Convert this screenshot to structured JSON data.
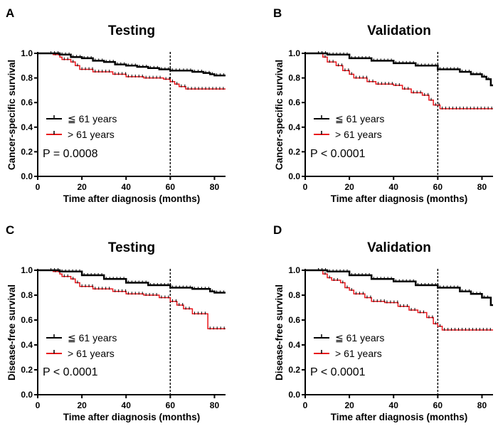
{
  "chart_data": [
    {
      "type": "line",
      "panel": "A",
      "title": "Testing",
      "xlabel": "Time after diagnosis (months)",
      "ylabel": "Cancer-specific survival",
      "xlim": [
        0,
        85
      ],
      "ylim": [
        0,
        1
      ],
      "xticks": [
        0,
        20,
        40,
        60,
        80
      ],
      "yticks": [
        "0.0",
        "0.2",
        "0.4",
        "0.6",
        "0.8",
        "1.0"
      ],
      "reference_line_x": 60,
      "pvalue": "P = 0.0008",
      "series": [
        {
          "name": "≦ 61 years",
          "color": "#000000",
          "points": [
            [
              0,
              1.0
            ],
            [
              5,
              1.0
            ],
            [
              10,
              0.99
            ],
            [
              15,
              0.97
            ],
            [
              20,
              0.96
            ],
            [
              25,
              0.94
            ],
            [
              30,
              0.93
            ],
            [
              35,
              0.91
            ],
            [
              40,
              0.9
            ],
            [
              45,
              0.89
            ],
            [
              50,
              0.88
            ],
            [
              55,
              0.87
            ],
            [
              60,
              0.86
            ],
            [
              65,
              0.86
            ],
            [
              70,
              0.85
            ],
            [
              75,
              0.84
            ],
            [
              78,
              0.83
            ],
            [
              80,
              0.82
            ],
            [
              85,
              0.82
            ]
          ]
        },
        {
          "name": "> 61 years",
          "color": "#e8151b",
          "points": [
            [
              0,
              1.0
            ],
            [
              7,
              0.99
            ],
            [
              10,
              0.97
            ],
            [
              11,
              0.95
            ],
            [
              15,
              0.93
            ],
            [
              17,
              0.9
            ],
            [
              19,
              0.87
            ],
            [
              25,
              0.85
            ],
            [
              34,
              0.83
            ],
            [
              40,
              0.81
            ],
            [
              48,
              0.8
            ],
            [
              57,
              0.79
            ],
            [
              60,
              0.77
            ],
            [
              62,
              0.75
            ],
            [
              64,
              0.73
            ],
            [
              67,
              0.71
            ],
            [
              85,
              0.71
            ]
          ]
        }
      ]
    },
    {
      "type": "line",
      "panel": "B",
      "title": "Validation",
      "xlabel": "Time after diagnosis (months)",
      "ylabel": "Cancer-specific survival",
      "xlim": [
        0,
        85
      ],
      "ylim": [
        0,
        1
      ],
      "xticks": [
        0,
        20,
        40,
        60,
        80
      ],
      "yticks": [
        "0.0",
        "0.2",
        "0.4",
        "0.6",
        "0.8",
        "1.0"
      ],
      "reference_line_x": 60,
      "pvalue": "P < 0.0001",
      "series": [
        {
          "name": "≦ 61 years",
          "color": "#000000",
          "points": [
            [
              0,
              1.0
            ],
            [
              5,
              1.0
            ],
            [
              10,
              0.99
            ],
            [
              20,
              0.96
            ],
            [
              30,
              0.94
            ],
            [
              40,
              0.92
            ],
            [
              50,
              0.9
            ],
            [
              60,
              0.87
            ],
            [
              70,
              0.85
            ],
            [
              75,
              0.83
            ],
            [
              80,
              0.81
            ],
            [
              82,
              0.79
            ],
            [
              84,
              0.74
            ],
            [
              85,
              0.74
            ]
          ]
        },
        {
          "name": "> 61 years",
          "color": "#e8151b",
          "points": [
            [
              0,
              1.0
            ],
            [
              5,
              1.0
            ],
            [
              8,
              0.97
            ],
            [
              10,
              0.93
            ],
            [
              14,
              0.9
            ],
            [
              17,
              0.86
            ],
            [
              20,
              0.83
            ],
            [
              22,
              0.8
            ],
            [
              28,
              0.77
            ],
            [
              32,
              0.75
            ],
            [
              40,
              0.74
            ],
            [
              44,
              0.71
            ],
            [
              48,
              0.68
            ],
            [
              53,
              0.66
            ],
            [
              56,
              0.62
            ],
            [
              58,
              0.58
            ],
            [
              61,
              0.55
            ],
            [
              85,
              0.55
            ]
          ]
        }
      ]
    },
    {
      "type": "line",
      "panel": "C",
      "title": "Testing",
      "xlabel": "Time after diagnosis (months)",
      "ylabel": "Disease-free survival",
      "xlim": [
        0,
        85
      ],
      "ylim": [
        0,
        1
      ],
      "xticks": [
        0,
        20,
        40,
        60,
        80
      ],
      "yticks": [
        "0.0",
        "0.2",
        "0.4",
        "0.6",
        "0.8",
        "1.0"
      ],
      "reference_line_x": 60,
      "pvalue": "P < 0.0001",
      "series": [
        {
          "name": "≦ 61 years",
          "color": "#000000",
          "points": [
            [
              0,
              1.0
            ],
            [
              5,
              1.0
            ],
            [
              10,
              0.99
            ],
            [
              20,
              0.96
            ],
            [
              30,
              0.93
            ],
            [
              40,
              0.9
            ],
            [
              50,
              0.88
            ],
            [
              60,
              0.86
            ],
            [
              70,
              0.85
            ],
            [
              78,
              0.83
            ],
            [
              80,
              0.82
            ],
            [
              85,
              0.82
            ]
          ]
        },
        {
          "name": "> 61 years",
          "color": "#e8151b",
          "points": [
            [
              0,
              1.0
            ],
            [
              7,
              0.99
            ],
            [
              10,
              0.97
            ],
            [
              11,
              0.95
            ],
            [
              15,
              0.93
            ],
            [
              17,
              0.9
            ],
            [
              19,
              0.87
            ],
            [
              25,
              0.85
            ],
            [
              34,
              0.83
            ],
            [
              40,
              0.81
            ],
            [
              48,
              0.8
            ],
            [
              55,
              0.78
            ],
            [
              60,
              0.75
            ],
            [
              63,
              0.72
            ],
            [
              66,
              0.69
            ],
            [
              70,
              0.65
            ],
            [
              76,
              0.65
            ],
            [
              77,
              0.53
            ],
            [
              85,
              0.53
            ]
          ]
        }
      ]
    },
    {
      "type": "line",
      "panel": "D",
      "title": "Validation",
      "xlabel": "Time after diagnosis (months)",
      "ylabel": "Disease-free survival",
      "xlim": [
        0,
        85
      ],
      "ylim": [
        0,
        1
      ],
      "xticks": [
        0,
        20,
        40,
        60,
        80
      ],
      "yticks": [
        "0.0",
        "0.2",
        "0.4",
        "0.6",
        "0.8",
        "1.0"
      ],
      "reference_line_x": 60,
      "pvalue": "P < 0.0001",
      "series": [
        {
          "name": "≦ 61 years",
          "color": "#000000",
          "points": [
            [
              0,
              1.0
            ],
            [
              5,
              1.0
            ],
            [
              10,
              0.99
            ],
            [
              20,
              0.96
            ],
            [
              30,
              0.93
            ],
            [
              40,
              0.91
            ],
            [
              50,
              0.88
            ],
            [
              60,
              0.86
            ],
            [
              70,
              0.83
            ],
            [
              75,
              0.81
            ],
            [
              80,
              0.78
            ],
            [
              83,
              0.78
            ],
            [
              84,
              0.72
            ],
            [
              85,
              0.72
            ]
          ]
        },
        {
          "name": "> 61 years",
          "color": "#e8151b",
          "points": [
            [
              0,
              1.0
            ],
            [
              5,
              1.0
            ],
            [
              8,
              0.97
            ],
            [
              10,
              0.94
            ],
            [
              12,
              0.92
            ],
            [
              16,
              0.9
            ],
            [
              18,
              0.86
            ],
            [
              20,
              0.84
            ],
            [
              22,
              0.81
            ],
            [
              27,
              0.78
            ],
            [
              30,
              0.75
            ],
            [
              36,
              0.74
            ],
            [
              42,
              0.71
            ],
            [
              47,
              0.68
            ],
            [
              51,
              0.66
            ],
            [
              55,
              0.62
            ],
            [
              58,
              0.57
            ],
            [
              60,
              0.55
            ],
            [
              62,
              0.52
            ],
            [
              85,
              0.52
            ]
          ]
        }
      ]
    }
  ]
}
